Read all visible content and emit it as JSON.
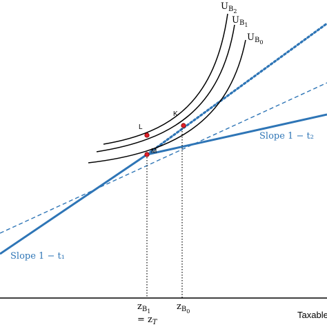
{
  "labels": {
    "ub2_main": "U",
    "ub2_sub": "B",
    "ub2_subsub": "2",
    "ub1_main": "U",
    "ub1_sub": "B",
    "ub1_subsub": "1",
    "ub0_main": "U",
    "ub0_sub": "B",
    "ub0_subsub": "0",
    "point_l": "L",
    "point_k": "K",
    "point_m": "M",
    "slope_upper": "Slope 1 − t₂",
    "slope_lower": "Slope 1 − t₁",
    "zb1_main": "z",
    "zb1_sub": "B",
    "zb1_subsub": "1",
    "zt_eq": "= z",
    "zt_sub": "T",
    "zb0_main": "z",
    "zb0_sub": "B",
    "zb0_subsub": "0",
    "x_axis": "Taxable"
  },
  "colors": {
    "budget_line": "#2e75b6",
    "dashed_line": "#2e75b6",
    "dotted_line": "#2e75b6",
    "point": "#e0202a",
    "curve": "#000000",
    "axis": "#000000"
  }
}
